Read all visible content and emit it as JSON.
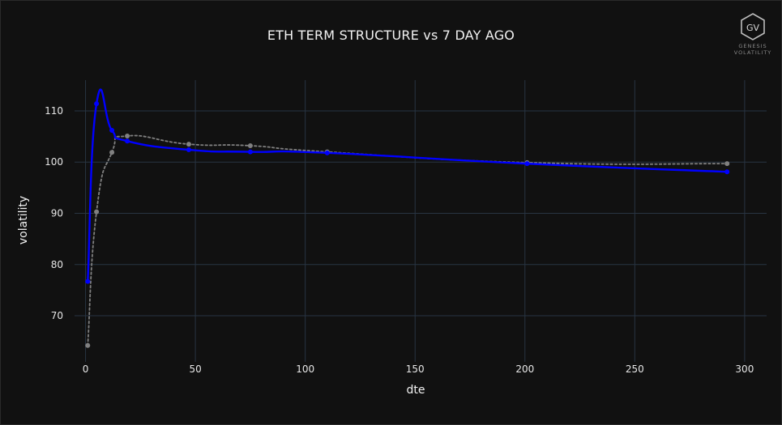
{
  "title": "ETH TERM STRUCTURE vs 7 DAY AGO",
  "logo": {
    "text": "GV",
    "line1": "GENESIS",
    "line2": "VOLATILITY"
  },
  "chart_data": {
    "type": "line",
    "title": "ETH TERM STRUCTURE vs 7 DAY AGO",
    "xlabel": "dte",
    "ylabel": "volatility",
    "xlim": [
      -5,
      310
    ],
    "ylim": [
      61,
      116
    ],
    "x_ticks": [
      0,
      50,
      100,
      150,
      200,
      250,
      300
    ],
    "y_ticks": [
      70,
      80,
      90,
      100,
      110
    ],
    "grid": true,
    "series": [
      {
        "color": "#0000ff",
        "style": "solid",
        "x": [
          1,
          5,
          12,
          19,
          47,
          75,
          110,
          201,
          292
        ],
        "y": [
          76.7,
          111.4,
          106.2,
          104.1,
          102.4,
          102.0,
          101.8,
          99.7,
          98.1
        ]
      },
      {
        "color": "#808080",
        "style": "dotted",
        "x": [
          1,
          5,
          12,
          19,
          47,
          75,
          110,
          201,
          292
        ],
        "y": [
          64.2,
          90.3,
          101.9,
          105.1,
          103.5,
          103.2,
          102.0,
          99.9,
          99.7
        ]
      }
    ]
  }
}
